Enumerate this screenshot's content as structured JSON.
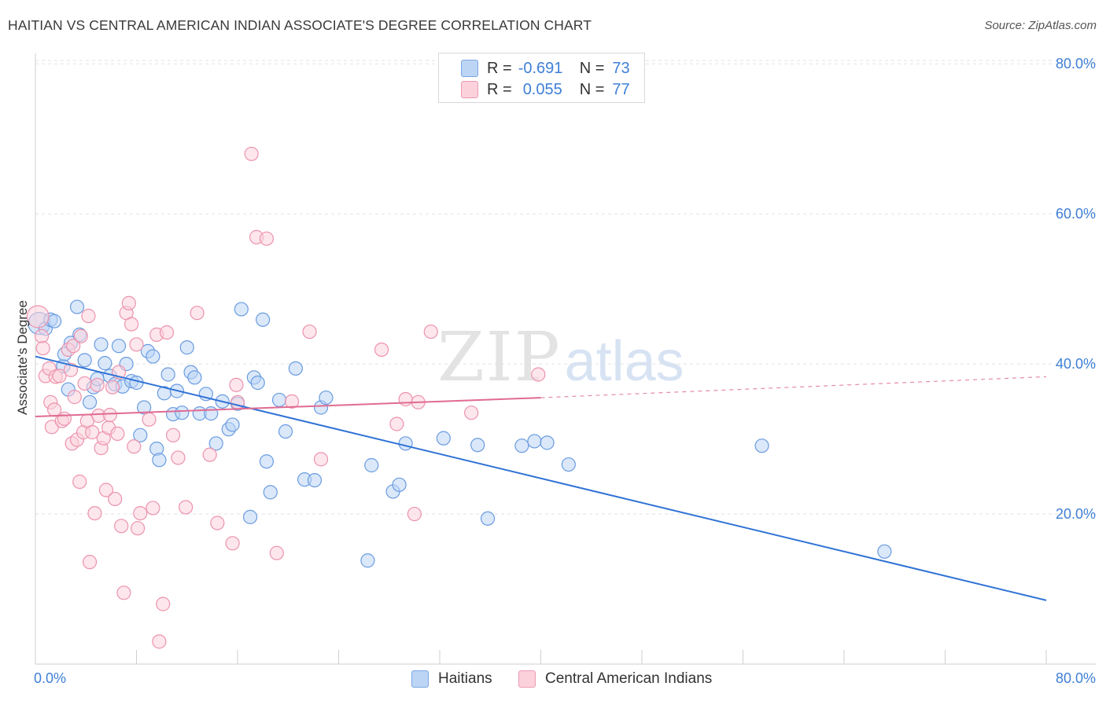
{
  "title": "HAITIAN VS CENTRAL AMERICAN INDIAN ASSOCIATE'S DEGREE CORRELATION CHART",
  "source": "Source: ZipAtlas.com",
  "watermark": {
    "zip": "ZIP",
    "atlas": "atlas"
  },
  "legend": {
    "rows": [
      {
        "r_label": "R =",
        "r_value": "-0.691",
        "n_label": "N =",
        "n_value": "73"
      },
      {
        "r_label": "R =",
        "r_value": "0.055",
        "n_label": "N =",
        "n_value": "77"
      }
    ]
  },
  "bottom_legend": [
    {
      "label": "Haitians"
    },
    {
      "label": "Central American Indians"
    }
  ],
  "colors": {
    "blue_fill": "#bcd5f5",
    "blue_stroke": "#6a9be0",
    "blue_line": "#2f72d6",
    "pink_fill": "#fbd1dc",
    "pink_stroke": "#ec93ad",
    "pink_line": "#e06b92",
    "grid": "#e2e2e2",
    "tick_text": "#3f7fd6"
  },
  "chart_data": {
    "type": "scatter",
    "title": "HAITIAN VS CENTRAL AMERICAN INDIAN ASSOCIATE'S DEGREE CORRELATION CHART",
    "xlabel": "",
    "ylabel": "Associate's Degree",
    "xlim": [
      0,
      80
    ],
    "ylim": [
      0,
      80
    ],
    "x_tick_labels": [
      "0.0%",
      "80.0%"
    ],
    "y_tick_labels": [
      {
        "value": 20,
        "label": "20.0%"
      },
      {
        "value": 40,
        "label": "40.0%"
      },
      {
        "value": 60,
        "label": "60.0%"
      },
      {
        "value": 80,
        "label": "80.0%"
      }
    ],
    "grid": true,
    "series": [
      {
        "name": "Haitians",
        "r": -0.691,
        "n": 73,
        "trend": {
          "x": [
            0,
            80
          ],
          "y": [
            41.0,
            8.5
          ]
        },
        "points": [
          [
            0.3,
            45.4
          ],
          [
            0.8,
            44.7
          ],
          [
            1.2,
            45.9
          ],
          [
            1.5,
            45.7
          ],
          [
            3.3,
            47.6
          ],
          [
            2.2,
            39.7
          ],
          [
            3.5,
            43.9
          ],
          [
            2.8,
            42.8
          ],
          [
            2.3,
            41.3
          ],
          [
            2.6,
            36.6
          ],
          [
            3.9,
            40.5
          ],
          [
            4.3,
            34.9
          ],
          [
            4.6,
            36.9
          ],
          [
            4.9,
            38.0
          ],
          [
            5.2,
            42.6
          ],
          [
            5.5,
            40.1
          ],
          [
            5.9,
            38.4
          ],
          [
            6.3,
            37.3
          ],
          [
            6.6,
            42.4
          ],
          [
            6.9,
            37.0
          ],
          [
            7.2,
            40.0
          ],
          [
            7.6,
            37.7
          ],
          [
            8.0,
            37.5
          ],
          [
            8.3,
            30.5
          ],
          [
            8.6,
            34.2
          ],
          [
            8.9,
            41.7
          ],
          [
            9.3,
            41.0
          ],
          [
            9.6,
            28.7
          ],
          [
            9.8,
            27.2
          ],
          [
            10.2,
            36.1
          ],
          [
            10.5,
            38.6
          ],
          [
            10.9,
            33.3
          ],
          [
            11.2,
            36.4
          ],
          [
            11.6,
            33.5
          ],
          [
            12.0,
            42.2
          ],
          [
            12.3,
            38.9
          ],
          [
            12.6,
            38.2
          ],
          [
            13.0,
            33.4
          ],
          [
            13.5,
            36.0
          ],
          [
            13.9,
            33.4
          ],
          [
            14.3,
            29.4
          ],
          [
            14.8,
            35.0
          ],
          [
            15.3,
            31.3
          ],
          [
            15.6,
            31.9
          ],
          [
            16.0,
            34.7
          ],
          [
            16.3,
            47.3
          ],
          [
            17.0,
            19.6
          ],
          [
            17.3,
            38.2
          ],
          [
            17.6,
            37.5
          ],
          [
            18.0,
            45.9
          ],
          [
            18.3,
            27.0
          ],
          [
            18.6,
            22.9
          ],
          [
            19.3,
            35.2
          ],
          [
            19.8,
            31.0
          ],
          [
            20.6,
            39.4
          ],
          [
            21.3,
            24.6
          ],
          [
            22.1,
            24.5
          ],
          [
            22.6,
            34.2
          ],
          [
            23.0,
            35.5
          ],
          [
            26.3,
            13.8
          ],
          [
            26.6,
            26.5
          ],
          [
            28.3,
            23.0
          ],
          [
            28.8,
            23.9
          ],
          [
            29.3,
            29.4
          ],
          [
            32.3,
            30.1
          ],
          [
            35.0,
            29.2
          ],
          [
            35.8,
            19.4
          ],
          [
            38.5,
            29.1
          ],
          [
            39.5,
            29.7
          ],
          [
            40.5,
            29.5
          ],
          [
            42.2,
            26.6
          ],
          [
            57.5,
            29.1
          ],
          [
            67.2,
            15.0
          ]
        ]
      },
      {
        "name": "Central American Indians",
        "r": 0.055,
        "n": 77,
        "trend": {
          "x": [
            0,
            40
          ],
          "y": [
            33.0,
            35.5
          ],
          "dashed_extension": {
            "x": [
              40,
              80
            ],
            "y": [
              35.5,
              38.3
            ]
          }
        },
        "points": [
          [
            0.2,
            46.3
          ],
          [
            0.5,
            43.7
          ],
          [
            0.6,
            42.1
          ],
          [
            0.8,
            38.4
          ],
          [
            1.1,
            39.4
          ],
          [
            1.2,
            34.9
          ],
          [
            1.3,
            31.6
          ],
          [
            1.5,
            33.9
          ],
          [
            1.6,
            38.3
          ],
          [
            1.9,
            38.4
          ],
          [
            2.1,
            32.4
          ],
          [
            2.3,
            32.7
          ],
          [
            2.6,
            41.9
          ],
          [
            2.8,
            39.2
          ],
          [
            2.9,
            29.4
          ],
          [
            3.0,
            42.4
          ],
          [
            3.1,
            35.6
          ],
          [
            3.3,
            29.9
          ],
          [
            3.5,
            24.3
          ],
          [
            3.6,
            43.7
          ],
          [
            3.8,
            30.9
          ],
          [
            3.9,
            37.4
          ],
          [
            4.1,
            32.4
          ],
          [
            4.2,
            46.4
          ],
          [
            4.3,
            13.6
          ],
          [
            4.5,
            30.9
          ],
          [
            4.7,
            20.1
          ],
          [
            4.9,
            37.2
          ],
          [
            5.0,
            33.1
          ],
          [
            5.2,
            28.8
          ],
          [
            5.4,
            30.1
          ],
          [
            5.6,
            23.2
          ],
          [
            5.8,
            31.5
          ],
          [
            5.9,
            33.2
          ],
          [
            6.1,
            36.9
          ],
          [
            6.3,
            22.0
          ],
          [
            6.5,
            30.7
          ],
          [
            6.6,
            38.9
          ],
          [
            6.8,
            18.4
          ],
          [
            7.0,
            9.5
          ],
          [
            7.2,
            46.8
          ],
          [
            7.4,
            48.1
          ],
          [
            7.6,
            45.3
          ],
          [
            7.8,
            29.0
          ],
          [
            8.0,
            42.6
          ],
          [
            8.1,
            18.1
          ],
          [
            8.3,
            20.1
          ],
          [
            9.0,
            32.6
          ],
          [
            9.3,
            20.8
          ],
          [
            9.6,
            43.9
          ],
          [
            9.8,
            3.0
          ],
          [
            10.1,
            8.0
          ],
          [
            10.4,
            44.2
          ],
          [
            10.9,
            30.5
          ],
          [
            11.3,
            27.5
          ],
          [
            11.9,
            20.9
          ],
          [
            12.8,
            46.8
          ],
          [
            13.8,
            27.9
          ],
          [
            14.4,
            18.8
          ],
          [
            15.6,
            16.1
          ],
          [
            15.9,
            37.2
          ],
          [
            16.0,
            34.9
          ],
          [
            17.1,
            68.0
          ],
          [
            17.5,
            56.9
          ],
          [
            18.3,
            56.7
          ],
          [
            19.1,
            14.8
          ],
          [
            20.3,
            35.0
          ],
          [
            21.7,
            44.3
          ],
          [
            22.6,
            27.3
          ],
          [
            27.4,
            41.9
          ],
          [
            28.6,
            32.0
          ],
          [
            29.3,
            35.3
          ],
          [
            30.0,
            20.0
          ],
          [
            30.3,
            34.9
          ],
          [
            31.3,
            44.3
          ],
          [
            34.5,
            33.5
          ],
          [
            39.8,
            38.6
          ]
        ]
      }
    ]
  }
}
